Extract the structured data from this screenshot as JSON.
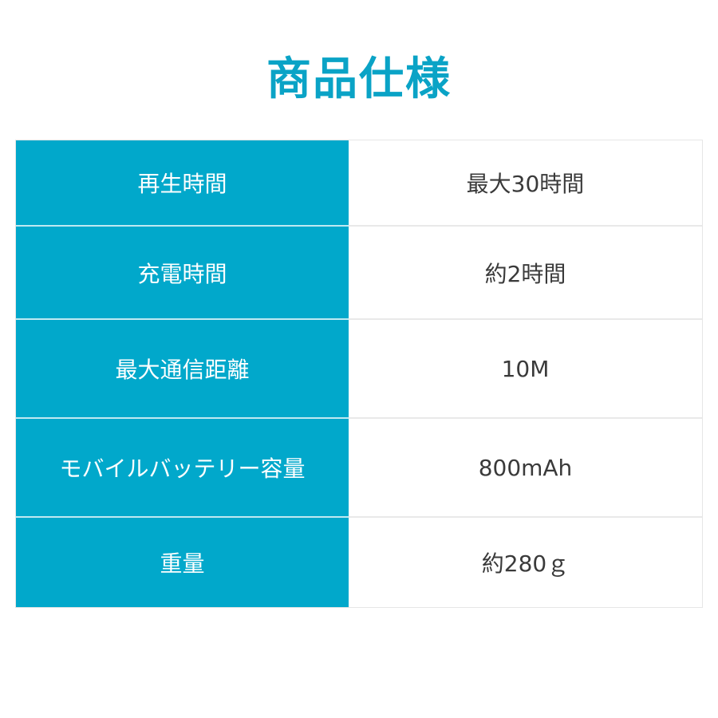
{
  "title": "商品仕様",
  "colors": {
    "accent": "#01a8cb",
    "text": "#3a3a3a"
  },
  "specs": [
    {
      "label": "再生時間",
      "value": "最大30時間"
    },
    {
      "label": "充電時間",
      "value": "約2時間"
    },
    {
      "label": "最大通信距離",
      "value": "10M"
    },
    {
      "label": "モバイルバッテリー容量",
      "value": "800mAh"
    },
    {
      "label": "重量",
      "value": "約280ｇ"
    }
  ]
}
